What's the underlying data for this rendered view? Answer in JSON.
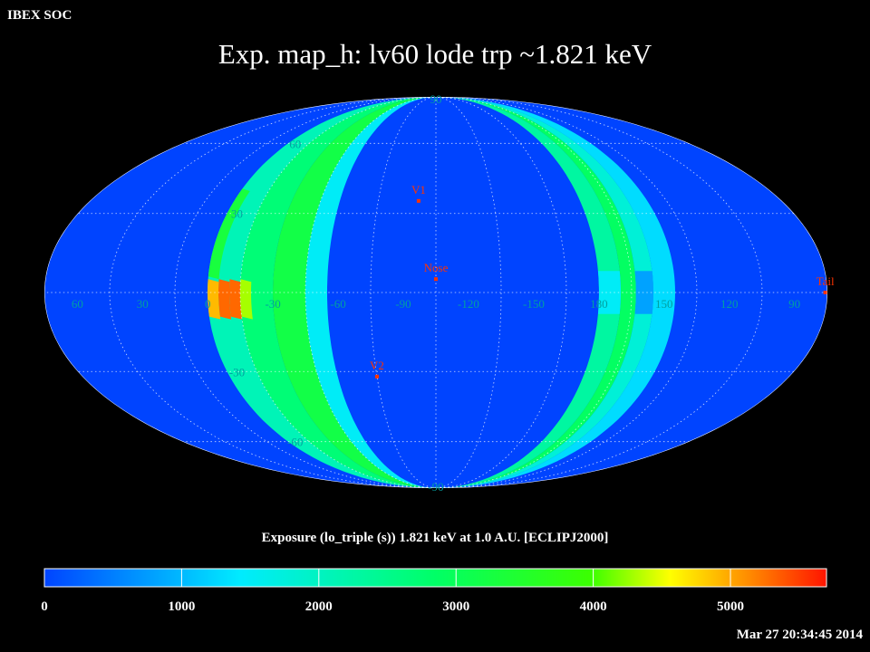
{
  "header": {
    "org_label": "IBEX SOC",
    "title": "Exp.   map_h: lv60 lode trp ~1.821 keV"
  },
  "colorbar": {
    "label": "Exposure (lo_triple (s))  1.821 keV at 1.0 A.U. [ECLIPJ2000]",
    "min": 0,
    "max": 5700,
    "tick_labels": [
      "0",
      "1000",
      "2000",
      "3000",
      "4000",
      "5000"
    ],
    "tick_values": [
      0,
      1000,
      2000,
      3000,
      4000,
      5000
    ]
  },
  "map": {
    "projection": "Mollweide",
    "background": "#0044ff",
    "grid": "dotted",
    "lon_labels": [
      "60",
      "30",
      "0",
      "-30",
      "-60",
      "-90",
      "-120",
      "-150",
      "180",
      "150",
      "120",
      "90"
    ],
    "lon_label_values": [
      60,
      30,
      0,
      -30,
      -60,
      -90,
      -120,
      -150,
      180,
      150,
      120,
      90
    ],
    "lat_labels": [
      "90",
      "60",
      "30",
      "-30",
      "-60",
      "-90"
    ],
    "lat_label_values": [
      90,
      60,
      30,
      -30,
      -60,
      -90
    ],
    "markers": [
      {
        "label": "V1",
        "lon": -96,
        "lat": 35
      },
      {
        "label": "Nose",
        "lon": -105,
        "lat": 5
      },
      {
        "label": "V2",
        "lon": -75,
        "lat": -32
      },
      {
        "label": "Tail",
        "lon": 76,
        "lat": 0
      }
    ],
    "marker_color": "#ff3300",
    "exposure_bands": [
      {
        "lon_min": -15,
        "lon_max": 0,
        "value": 2100
      },
      {
        "lon_min": -30,
        "lon_max": -15,
        "value": 2700
      },
      {
        "lon_min": -45,
        "lon_max": -30,
        "value": 3200
      },
      {
        "lon_min": -55,
        "lon_max": -45,
        "value": 1500
      },
      {
        "lon_min": 170,
        "lon_max": 180,
        "value": 2300
      },
      {
        "lon_min": 163,
        "lon_max": 170,
        "value": 2900
      },
      {
        "lon_min": 155,
        "lon_max": 163,
        "value": 1800
      },
      {
        "lon_min": 145,
        "lon_max": 155,
        "value": 1300
      }
    ],
    "exposure_cells": [
      {
        "lon_min": -10,
        "lon_max": -5,
        "lat_min": -10,
        "lat_max": 5,
        "value": 5300
      },
      {
        "lon_min": -5,
        "lon_max": 0,
        "lat_min": -10,
        "lat_max": 5,
        "value": 4900
      },
      {
        "lon_min": -15,
        "lon_max": -10,
        "lat_min": -10,
        "lat_max": 5,
        "value": 5300
      },
      {
        "lon_min": -20,
        "lon_max": -15,
        "lat_min": -10,
        "lat_max": 5,
        "value": 4300
      },
      {
        "lon_min": -5,
        "lon_max": 0,
        "lat_min": 5,
        "lat_max": 40,
        "value": 3300
      },
      {
        "lon_min": 170,
        "lon_max": 180,
        "lat_min": -8,
        "lat_max": 8,
        "value": 1500
      },
      {
        "lon_min": 155,
        "lon_max": 163,
        "lat_min": -8,
        "lat_max": 8,
        "value": 800
      }
    ]
  },
  "footer": {
    "timestamp": "Mar 27 20:34:45 2014"
  }
}
